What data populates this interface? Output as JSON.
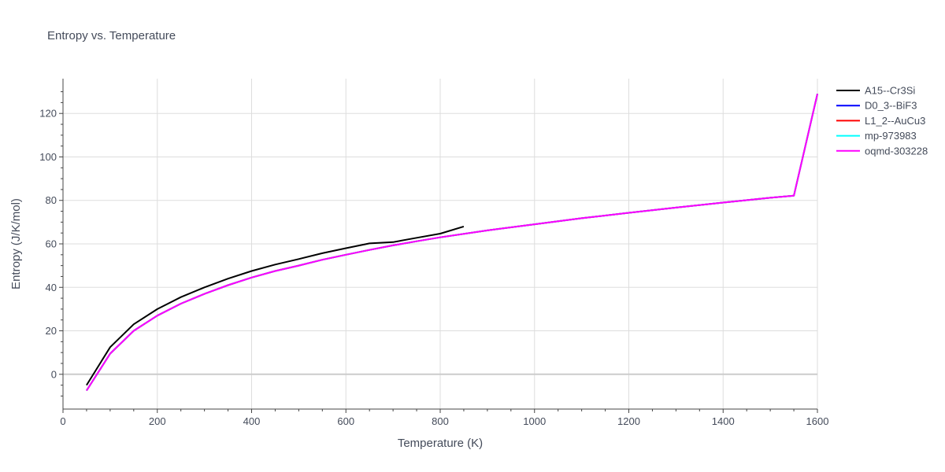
{
  "chart_data": {
    "type": "line",
    "title": "Entropy vs. Temperature",
    "xlabel": "Temperature (K)",
    "ylabel": "Entropy (J/K/mol)",
    "xlim": [
      0,
      1600
    ],
    "ylim": [
      -16,
      136
    ],
    "xticks": [
      0,
      200,
      400,
      600,
      800,
      1000,
      1200,
      1400,
      1600
    ],
    "yticks": [
      0,
      20,
      40,
      60,
      80,
      100,
      120
    ],
    "grid": true,
    "legend_position": "right",
    "series": [
      {
        "name": "A15--Cr3Si",
        "color": "#000000",
        "x": [
          50,
          100,
          150,
          200,
          250,
          300,
          350,
          400,
          450,
          500,
          550,
          600,
          650,
          700,
          750,
          800,
          850
        ],
        "y": [
          -5,
          12.5,
          23,
          30,
          35.5,
          40,
          44,
          47.5,
          50.5,
          53,
          55.7,
          58,
          60.2,
          60.8,
          62.8,
          64.7,
          68
        ]
      },
      {
        "name": "D0_3--BiF3",
        "color": "#0000ff",
        "x": [
          50,
          100,
          150,
          200,
          250,
          300,
          350,
          400,
          450,
          500,
          550,
          600,
          650,
          700,
          750,
          800,
          900,
          1000,
          1100,
          1200,
          1300,
          1400,
          1500,
          1550,
          1600
        ],
        "y": [
          -7.5,
          9.5,
          20,
          27,
          32.5,
          37,
          41,
          44.5,
          47.5,
          50,
          52.7,
          55,
          57.2,
          59.3,
          61.2,
          63,
          66.2,
          69,
          71.8,
          74.3,
          76.7,
          79,
          81.2,
          82.2,
          129
        ]
      },
      {
        "name": "L1_2--AuCu3",
        "color": "#ff0000",
        "x": [
          50,
          100,
          150,
          200,
          250,
          300,
          350,
          400,
          450,
          500,
          550,
          600,
          650,
          700,
          750,
          800,
          900,
          1000,
          1100,
          1200,
          1300,
          1400,
          1500,
          1550,
          1600
        ],
        "y": [
          -7.5,
          9.5,
          20,
          27,
          32.5,
          37,
          41,
          44.5,
          47.5,
          50,
          52.7,
          55,
          57.2,
          59.3,
          61.2,
          63,
          66.2,
          69,
          71.8,
          74.3,
          76.7,
          79,
          81.2,
          82.2,
          129
        ]
      },
      {
        "name": "mp-973983",
        "color": "#00ffff",
        "x": [
          50,
          100,
          150,
          200,
          250,
          300,
          350,
          400,
          450,
          500,
          550,
          600,
          650,
          700,
          750,
          800,
          900,
          1000,
          1100,
          1200,
          1300,
          1400,
          1500,
          1550,
          1600
        ],
        "y": [
          -7.5,
          9.5,
          20,
          27,
          32.5,
          37,
          41,
          44.5,
          47.5,
          50,
          52.7,
          55,
          57.2,
          59.3,
          61.2,
          63,
          66.2,
          69,
          71.8,
          74.3,
          76.7,
          79,
          81.2,
          82.2,
          129
        ]
      },
      {
        "name": "oqmd-303228",
        "color": "#ff00ff",
        "x": [
          50,
          100,
          150,
          200,
          250,
          300,
          350,
          400,
          450,
          500,
          550,
          600,
          650,
          700,
          750,
          800,
          900,
          1000,
          1100,
          1200,
          1300,
          1400,
          1500,
          1550,
          1600
        ],
        "y": [
          -7.5,
          9.5,
          20,
          27,
          32.5,
          37,
          41,
          44.5,
          47.5,
          50,
          52.7,
          55,
          57.2,
          59.3,
          61.2,
          63,
          66.2,
          69,
          71.8,
          74.3,
          76.7,
          79,
          81.2,
          82.2,
          129
        ]
      }
    ]
  }
}
